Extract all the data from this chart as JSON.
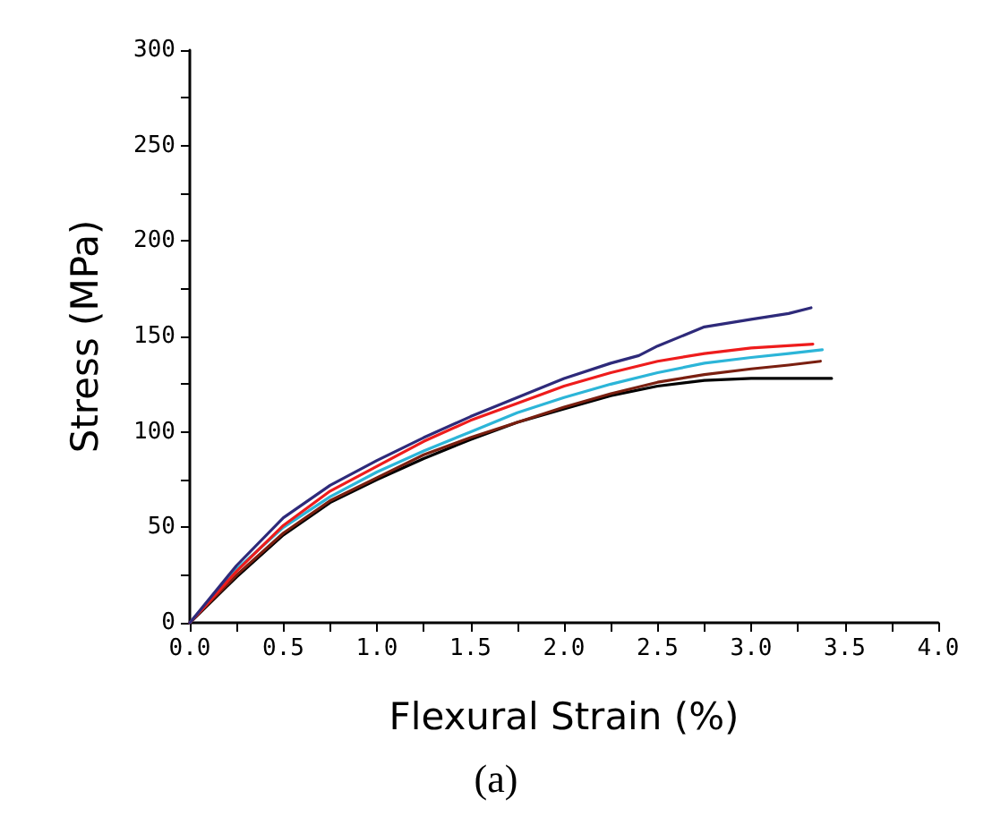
{
  "chart_data": {
    "type": "line",
    "xlabel": "Flexural Strain (%)",
    "ylabel": "Stress (MPa)",
    "annotations": [
      "(a)"
    ],
    "xlim": [
      0,
      4
    ],
    "ylim": [
      0,
      300
    ],
    "xticks": [
      {
        "value": 0,
        "label": "0.0"
      },
      {
        "value": 0.25,
        "label": null
      },
      {
        "value": 0.5,
        "label": "0.5"
      },
      {
        "value": 0.75,
        "label": null
      },
      {
        "value": 1,
        "label": "1.0"
      },
      {
        "value": 1.25,
        "label": null
      },
      {
        "value": 1.5,
        "label": "1.5"
      },
      {
        "value": 1.75,
        "label": null
      },
      {
        "value": 2,
        "label": "2.0"
      },
      {
        "value": 2.25,
        "label": null
      },
      {
        "value": 2.5,
        "label": "2.5"
      },
      {
        "value": 2.75,
        "label": null
      },
      {
        "value": 3,
        "label": "3.0"
      },
      {
        "value": 3.25,
        "label": null
      },
      {
        "value": 3.5,
        "label": "3.5"
      },
      {
        "value": 3.75,
        "label": null
      },
      {
        "value": 4,
        "label": "4.0"
      }
    ],
    "yticks": [
      0,
      {
        "value": 25,
        "label": null
      },
      50,
      {
        "value": 75,
        "label": null
      },
      100,
      {
        "value": 125,
        "label": null
      },
      150,
      {
        "value": 175,
        "label": null
      },
      200,
      {
        "value": 225,
        "label": null
      },
      250,
      {
        "value": 275,
        "label": null
      },
      300
    ],
    "marker": "none",
    "line_style": "solid",
    "series": [
      {
        "color": "#000000",
        "x": [
          0,
          0.25,
          0.5,
          0.75,
          1.0,
          1.25,
          1.5,
          1.75,
          2.0,
          2.25,
          2.5,
          2.75,
          3.0,
          3.43
        ],
        "values": [
          0,
          24,
          46,
          63,
          75,
          86,
          96,
          105,
          112,
          119,
          124,
          127,
          128,
          128
        ]
      },
      {
        "color": "#7a1f10",
        "x": [
          0,
          0.25,
          0.5,
          0.75,
          1.0,
          1.25,
          1.5,
          1.75,
          2.0,
          2.25,
          2.5,
          2.75,
          3.0,
          3.2,
          3.37
        ],
        "values": [
          0,
          25,
          47,
          64,
          76,
          88,
          97,
          105,
          113,
          120,
          126,
          130,
          133,
          135,
          137
        ]
      },
      {
        "color": "#2cb5d8",
        "x": [
          0,
          0.25,
          0.5,
          0.75,
          1.0,
          1.25,
          1.5,
          1.75,
          2.0,
          2.25,
          2.5,
          2.75,
          3.0,
          3.2,
          3.38
        ],
        "values": [
          0,
          28,
          50,
          66,
          79,
          90,
          100,
          110,
          118,
          125,
          131,
          136,
          139,
          141,
          143
        ]
      },
      {
        "color": "#ee1c1c",
        "x": [
          0,
          0.25,
          0.5,
          0.75,
          1.0,
          1.25,
          1.5,
          1.75,
          2.0,
          2.25,
          2.5,
          2.75,
          3.0,
          3.33
        ],
        "values": [
          0,
          27,
          51,
          69,
          82,
          95,
          106,
          115,
          124,
          131,
          137,
          141,
          144,
          146
        ]
      },
      {
        "color": "#2e2a7a",
        "x": [
          0,
          0.25,
          0.5,
          0.75,
          1.0,
          1.25,
          1.5,
          1.75,
          2.0,
          2.25,
          2.4,
          2.5,
          2.75,
          3.0,
          3.2,
          3.32
        ],
        "values": [
          0,
          30,
          55,
          72,
          85,
          97,
          108,
          118,
          128,
          136,
          140,
          145,
          155,
          159,
          162,
          165
        ]
      }
    ]
  }
}
